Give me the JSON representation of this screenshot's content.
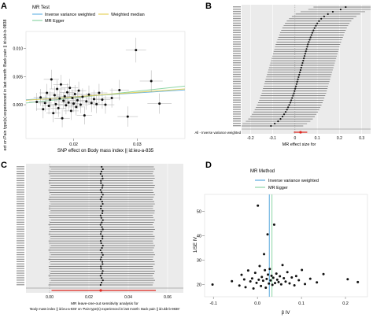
{
  "figure": {
    "panel_labels": [
      "A",
      "B",
      "C",
      "D"
    ],
    "colors": {
      "ivw": "#6fb8e6",
      "egger": "#8ed6a6",
      "median": "#e6d25c",
      "ivw_line_d": "#5aa9de",
      "summary_red": "#e0261f",
      "points": "#111111",
      "error_bars": "#555555",
      "panel_bg": "#ebebeb",
      "grid": "#ffffff"
    }
  },
  "chart_data": [
    {
      "id": "A",
      "type": "scatter",
      "xlabel": "SNP effect on Body mass index || id:ieu-a-835",
      "ylabel": "ect on Pain type(s) experienced in last month: Back pain || id:ukb-b-9838",
      "xlim": [
        0.0125,
        0.0375
      ],
      "ylim": [
        -0.006,
        0.013
      ],
      "xticks": [
        0.02,
        0.03
      ],
      "xtick_labels": [
        "0.02",
        "0.03"
      ],
      "yticks": [
        0.0,
        0.005,
        0.01
      ],
      "ytick_labels": [
        "0.000",
        "0.005",
        "0.010"
      ],
      "legend": {
        "title": "MR Test",
        "position": "top",
        "entries": [
          "Inverse variance weighted",
          "Weighted median",
          "MR Egger"
        ]
      },
      "lines": [
        {
          "name": "Inverse variance weighted",
          "intercept": 0.0,
          "slope": 0.07
        },
        {
          "name": "MR Egger",
          "intercept": -0.0012,
          "slope": 0.12
        },
        {
          "name": "Weighted median",
          "intercept": -0.0002,
          "slope": 0.08
        }
      ],
      "points": [
        {
          "x": 0.0142,
          "y": 0.0005,
          "xe": 0.0012,
          "ye": 0.0016
        },
        {
          "x": 0.0148,
          "y": 0.0013,
          "xe": 0.0011,
          "ye": 0.0015
        },
        {
          "x": 0.0152,
          "y": -0.0008,
          "xe": 0.0011,
          "ye": 0.0016
        },
        {
          "x": 0.0155,
          "y": 0.0003,
          "xe": 0.0011,
          "ye": 0.0015
        },
        {
          "x": 0.0158,
          "y": 0.0021,
          "xe": 0.0012,
          "ye": 0.0016
        },
        {
          "x": 0.0161,
          "y": -0.0002,
          "xe": 0.0011,
          "ye": 0.0015
        },
        {
          "x": 0.0163,
          "y": 0.0009,
          "xe": 0.0012,
          "ye": 0.0015
        },
        {
          "x": 0.0165,
          "y": 0.0045,
          "xe": 0.0012,
          "ye": 0.0017
        },
        {
          "x": 0.0168,
          "y": -0.0015,
          "xe": 0.0011,
          "ye": 0.0016
        },
        {
          "x": 0.017,
          "y": 0.0017,
          "xe": 0.0012,
          "ye": 0.0016
        },
        {
          "x": 0.0172,
          "y": 0.0001,
          "xe": 0.0011,
          "ye": 0.0015
        },
        {
          "x": 0.0174,
          "y": 0.0028,
          "xe": 0.0012,
          "ye": 0.0016
        },
        {
          "x": 0.0176,
          "y": -0.0006,
          "xe": 0.0012,
          "ye": 0.0016
        },
        {
          "x": 0.0178,
          "y": 0.0011,
          "xe": 0.0012,
          "ye": 0.0015
        },
        {
          "x": 0.018,
          "y": 0.0036,
          "xe": 0.0012,
          "ye": 0.0017
        },
        {
          "x": 0.0182,
          "y": -0.0024,
          "xe": 0.0012,
          "ye": 0.0016
        },
        {
          "x": 0.0184,
          "y": 0.0007,
          "xe": 0.0012,
          "ye": 0.0015
        },
        {
          "x": 0.0186,
          "y": 0.0015,
          "xe": 0.0012,
          "ye": 0.0015
        },
        {
          "x": 0.0188,
          "y": -0.0001,
          "xe": 0.0012,
          "ye": 0.0016
        },
        {
          "x": 0.019,
          "y": 0.0022,
          "xe": 0.0012,
          "ye": 0.0016
        },
        {
          "x": 0.0192,
          "y": 0.0004,
          "xe": 0.0012,
          "ye": 0.0015
        },
        {
          "x": 0.0194,
          "y": 0.003,
          "xe": 0.0013,
          "ye": 0.0016
        },
        {
          "x": 0.0196,
          "y": -0.0011,
          "xe": 0.0012,
          "ye": 0.0016
        },
        {
          "x": 0.0198,
          "y": 0.0012,
          "xe": 0.0012,
          "ye": 0.0015
        },
        {
          "x": 0.02,
          "y": 0.0002,
          "xe": 0.0012,
          "ye": 0.0015
        },
        {
          "x": 0.0202,
          "y": 0.0019,
          "xe": 0.0012,
          "ye": 0.0016
        },
        {
          "x": 0.0204,
          "y": -0.0004,
          "xe": 0.0012,
          "ye": 0.0015
        },
        {
          "x": 0.0206,
          "y": 0.0008,
          "xe": 0.0012,
          "ye": 0.0015
        },
        {
          "x": 0.0208,
          "y": 0.0025,
          "xe": 0.0012,
          "ye": 0.0016
        },
        {
          "x": 0.0211,
          "y": 0.0,
          "xe": 0.0012,
          "ye": 0.0015
        },
        {
          "x": 0.0214,
          "y": 0.0014,
          "xe": 0.0012,
          "ye": 0.0015
        },
        {
          "x": 0.0217,
          "y": -0.0019,
          "xe": 0.0012,
          "ye": 0.0016
        },
        {
          "x": 0.022,
          "y": 0.0006,
          "xe": 0.0012,
          "ye": 0.0015
        },
        {
          "x": 0.0224,
          "y": 0.0018,
          "xe": 0.0013,
          "ye": 0.0016
        },
        {
          "x": 0.0228,
          "y": 0.0003,
          "xe": 0.0013,
          "ye": 0.0016
        },
        {
          "x": 0.0232,
          "y": 0.001,
          "xe": 0.0013,
          "ye": 0.0016
        },
        {
          "x": 0.0236,
          "y": 0.0001,
          "xe": 0.0013,
          "ye": 0.0016
        },
        {
          "x": 0.024,
          "y": 0.0021,
          "xe": 0.0013,
          "ye": 0.0016
        },
        {
          "x": 0.0245,
          "y": 0.0009,
          "xe": 0.0013,
          "ye": 0.0016
        },
        {
          "x": 0.025,
          "y": 0.0,
          "xe": 0.0014,
          "ye": 0.0016
        },
        {
          "x": 0.026,
          "y": 0.0012,
          "xe": 0.0014,
          "ye": 0.0017
        },
        {
          "x": 0.0272,
          "y": 0.0026,
          "xe": 0.0015,
          "ye": 0.0018
        },
        {
          "x": 0.0285,
          "y": -0.0021,
          "xe": 0.0016,
          "ye": 0.0018
        },
        {
          "x": 0.0298,
          "y": 0.0097,
          "xe": 0.0016,
          "ye": 0.0022
        },
        {
          "x": 0.0322,
          "y": 0.0042,
          "xe": 0.0018,
          "ye": 0.0019
        },
        {
          "x": 0.0335,
          "y": 0.0002,
          "xe": 0.0019,
          "ye": 0.0018
        }
      ]
    },
    {
      "id": "B",
      "type": "forest",
      "xlabel": "MR effect size for",
      "xlim": [
        -0.24,
        0.34
      ],
      "xticks": [
        -0.2,
        -0.1,
        0.0,
        0.1,
        0.2,
        0.3
      ],
      "xtick_labels": [
        "-0.2",
        "-0.1",
        "0",
        "0.1",
        "0.2",
        "0.3"
      ],
      "summary_label": "All - Inverse variance weighted",
      "summary": {
        "estimate": 0.025,
        "lower": -0.005,
        "upper": 0.055
      },
      "estimates": [
        -0.108,
        -0.091,
        -0.076,
        -0.065,
        -0.056,
        -0.049,
        -0.042,
        -0.036,
        -0.031,
        -0.026,
        -0.021,
        -0.017,
        -0.013,
        -0.009,
        -0.005,
        -0.002,
        0.001,
        0.004,
        0.007,
        0.01,
        0.013,
        0.016,
        0.019,
        0.022,
        0.025,
        0.028,
        0.031,
        0.034,
        0.037,
        0.04,
        0.043,
        0.046,
        0.049,
        0.052,
        0.055,
        0.058,
        0.062,
        0.066,
        0.07,
        0.074,
        0.078,
        0.083,
        0.088,
        0.094,
        0.1,
        0.108,
        0.118,
        0.131,
        0.148,
        0.17,
        0.205,
        0.228
      ],
      "half_width": 0.145
    },
    {
      "id": "C",
      "type": "forest",
      "xlabel": "MR leave-one-out sensitivity analysis for",
      "xlabel_line2": "'Body mass index || id:ieu-a-835' on 'Pain type(s) experienced in last month: Back pain || id:ukb-b-9838'",
      "xlim": [
        -0.012,
        0.068
      ],
      "xticks": [
        0.0,
        0.02,
        0.04,
        0.06
      ],
      "xtick_labels": [
        "0.00",
        "0.02",
        "0.04",
        "0.06"
      ],
      "summary": {
        "estimate": 0.026,
        "lower": 0.001,
        "upper": 0.054
      },
      "estimate_center": 0.0265,
      "half_width": 0.0265,
      "row_count": 52
    },
    {
      "id": "D",
      "type": "scatter",
      "xlabel": "β IV",
      "ylabel": "1/SE IV",
      "xlim": [
        -0.12,
        0.25
      ],
      "ylim": [
        15,
        57
      ],
      "xticks": [
        -0.1,
        0.0,
        0.1,
        0.2
      ],
      "xtick_labels": [
        "-0.1",
        "0.0",
        "0.1",
        "0.2"
      ],
      "yticks": [
        20,
        30,
        40,
        50
      ],
      "ytick_labels": [
        "20",
        "30",
        "40",
        "50"
      ],
      "legend": {
        "title": "MR Method",
        "position": "top",
        "entries": [
          "Inverse variance weighted",
          "MR Egger"
        ]
      },
      "vlines": [
        {
          "name": "Inverse variance weighted",
          "x": 0.027
        },
        {
          "name": "MR Egger",
          "x": 0.033
        }
      ],
      "points": [
        {
          "x": -0.102,
          "y": 20.0
        },
        {
          "x": -0.058,
          "y": 21.4
        },
        {
          "x": -0.041,
          "y": 19.6
        },
        {
          "x": -0.036,
          "y": 24.0
        },
        {
          "x": -0.03,
          "y": 22.1
        },
        {
          "x": -0.027,
          "y": 18.9
        },
        {
          "x": -0.021,
          "y": 25.8
        },
        {
          "x": -0.016,
          "y": 21.3
        },
        {
          "x": -0.012,
          "y": 22.5
        },
        {
          "x": -0.009,
          "y": 18.4
        },
        {
          "x": -0.005,
          "y": 24.8
        },
        {
          "x": -0.002,
          "y": 20.7
        },
        {
          "x": 0.001,
          "y": 52.4
        },
        {
          "x": 0.003,
          "y": 22.0
        },
        {
          "x": 0.005,
          "y": 27.6
        },
        {
          "x": 0.008,
          "y": 19.4
        },
        {
          "x": 0.01,
          "y": 23.1
        },
        {
          "x": 0.013,
          "y": 21.6
        },
        {
          "x": 0.015,
          "y": 32.5
        },
        {
          "x": 0.017,
          "y": 25.9
        },
        {
          "x": 0.019,
          "y": 18.7
        },
        {
          "x": 0.021,
          "y": 22.3
        },
        {
          "x": 0.023,
          "y": 40.6
        },
        {
          "x": 0.024,
          "y": 24.1
        },
        {
          "x": 0.026,
          "y": 20.4
        },
        {
          "x": 0.028,
          "y": 26.4
        },
        {
          "x": 0.03,
          "y": 21.7
        },
        {
          "x": 0.032,
          "y": 23.6
        },
        {
          "x": 0.034,
          "y": 19.9
        },
        {
          "x": 0.036,
          "y": 22.8
        },
        {
          "x": 0.038,
          "y": 44.6
        },
        {
          "x": 0.04,
          "y": 20.6
        },
        {
          "x": 0.043,
          "y": 24.5
        },
        {
          "x": 0.045,
          "y": 22.0
        },
        {
          "x": 0.048,
          "y": 21.0
        },
        {
          "x": 0.051,
          "y": 23.4
        },
        {
          "x": 0.054,
          "y": 20.1
        },
        {
          "x": 0.057,
          "y": 28.0
        },
        {
          "x": 0.06,
          "y": 22.6
        },
        {
          "x": 0.064,
          "y": 21.2
        },
        {
          "x": 0.068,
          "y": 25.1
        },
        {
          "x": 0.073,
          "y": 20.5
        },
        {
          "x": 0.078,
          "y": 22.9
        },
        {
          "x": 0.084,
          "y": 19.7
        },
        {
          "x": 0.088,
          "y": 23.5
        },
        {
          "x": 0.094,
          "y": 21.8
        },
        {
          "x": 0.101,
          "y": 26.0
        },
        {
          "x": 0.108,
          "y": 20.2
        },
        {
          "x": 0.12,
          "y": 22.4
        },
        {
          "x": 0.135,
          "y": 20.9
        },
        {
          "x": 0.15,
          "y": 24.3
        },
        {
          "x": 0.205,
          "y": 22.2
        },
        {
          "x": 0.228,
          "y": 21.0
        }
      ]
    }
  ]
}
